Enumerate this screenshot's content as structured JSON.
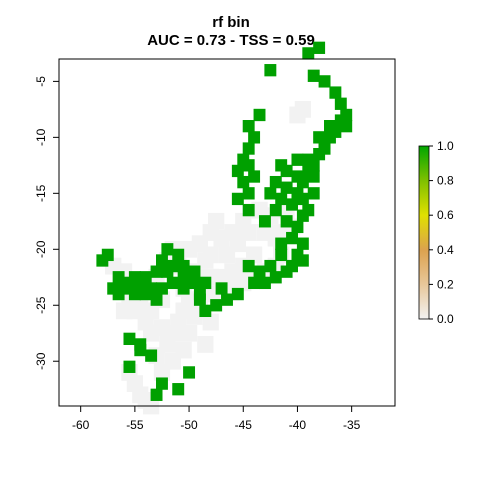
{
  "chart_data": {
    "type": "heatmap",
    "title": "rf bin",
    "subtitle": "AUC = 0.73 - TSS = 0.59",
    "xlabel": "",
    "ylabel": "",
    "xlim": [
      -62,
      -31
    ],
    "ylim": [
      -34,
      -3
    ],
    "x_ticks": [
      -60,
      -55,
      -50,
      -45,
      -40,
      -35
    ],
    "y_ticks": [
      -5,
      -10,
      -15,
      -20,
      -25,
      -30
    ],
    "grid": false,
    "legend_position": "right",
    "colorbar": {
      "range": [
        0.0,
        1.0
      ],
      "ticks": [
        "0.0",
        "0.2",
        "0.4",
        "0.6",
        "0.8",
        "1.0"
      ],
      "colors": [
        "#f2f2f2",
        "#e8c79a",
        "#dca24e",
        "#e0e000",
        "#7fc000",
        "#00a600"
      ]
    },
    "classes": [
      {
        "value": 0,
        "color": "#f2f2f2"
      },
      {
        "value": 1,
        "color": "#00a000"
      }
    ],
    "absence_cells": [
      [
        -55.5,
        -31.0
      ],
      [
        -55.0,
        -32.0
      ],
      [
        -54.5,
        -33.0
      ],
      [
        -54.0,
        -33.5
      ],
      [
        -53.5,
        -34.0
      ],
      [
        -52.5,
        -31.0
      ],
      [
        -51.5,
        -30.0
      ],
      [
        -50.5,
        -29.0
      ],
      [
        -50.0,
        -27.5
      ],
      [
        -49.5,
        -26.0
      ],
      [
        -48.0,
        -26.5
      ],
      [
        -48.5,
        -28.5
      ],
      [
        -53.0,
        -29.5
      ],
      [
        -52.0,
        -28.5
      ],
      [
        -51.5,
        -27.5
      ],
      [
        -51.0,
        -26.5
      ],
      [
        -50.5,
        -25.5
      ],
      [
        -49.0,
        -25.0
      ],
      [
        -50.0,
        -24.5
      ],
      [
        -54.0,
        -26.5
      ],
      [
        -53.5,
        -27.5
      ],
      [
        -52.5,
        -27.0
      ],
      [
        -53.5,
        -25.5
      ],
      [
        -52.5,
        -24.5
      ],
      [
        -50.5,
        -23.5
      ],
      [
        -48.5,
        -24.0
      ],
      [
        -47.0,
        -24.0
      ],
      [
        -46.0,
        -23.5
      ],
      [
        -45.0,
        -23.0
      ],
      [
        -44.0,
        -22.5
      ],
      [
        -43.0,
        -22.0
      ],
      [
        -42.0,
        -21.5
      ],
      [
        -41.5,
        -20.5
      ],
      [
        -42.0,
        -19.0
      ],
      [
        -43.0,
        -18.5
      ],
      [
        -42.5,
        -17.0
      ],
      [
        -43.5,
        -16.5
      ],
      [
        -44.0,
        -20.5
      ],
      [
        -45.0,
        -21.5
      ],
      [
        -46.0,
        -22.0
      ],
      [
        -47.0,
        -22.5
      ],
      [
        -48.0,
        -22.5
      ],
      [
        -49.0,
        -22.5
      ],
      [
        -50.0,
        -22.0
      ],
      [
        -51.0,
        -21.5
      ],
      [
        -52.0,
        -21.0
      ],
      [
        -50.0,
        -20.0
      ],
      [
        -51.5,
        -20.0
      ],
      [
        -49.0,
        -19.5
      ],
      [
        -48.0,
        -20.5
      ],
      [
        -46.5,
        -20.5
      ],
      [
        -45.5,
        -19.5
      ],
      [
        -44.5,
        -18.5
      ],
      [
        -45.0,
        -17.5
      ],
      [
        -46.0,
        -18.5
      ],
      [
        -47.0,
        -19.0
      ],
      [
        -48.5,
        -21.0
      ],
      [
        -53.5,
        -23.0
      ],
      [
        -54.5,
        -24.0
      ],
      [
        -55.5,
        -24.5
      ],
      [
        -56.0,
        -25.5
      ],
      [
        -55.0,
        -25.5
      ],
      [
        -53.0,
        -22.5
      ],
      [
        -57.0,
        -21.5
      ],
      [
        -56.0,
        -22.0
      ],
      [
        -41.0,
        -16.5
      ],
      [
        -41.5,
        -18.5
      ],
      [
        -40.5,
        -18.0
      ],
      [
        -47.5,
        -17.5
      ],
      [
        -48.0,
        -18.5
      ],
      [
        -40.0,
        -8.0
      ],
      [
        -39.5,
        -7.5
      ]
    ],
    "presence_cells": [
      [
        -36.0,
        -7.0
      ],
      [
        -35.5,
        -8.0
      ],
      [
        -36.0,
        -8.5
      ],
      [
        -36.5,
        -9.5
      ],
      [
        -37.0,
        -10.0
      ],
      [
        -35.5,
        -9.0
      ],
      [
        -36.5,
        -6.0
      ],
      [
        -37.5,
        -10.5
      ],
      [
        -38.0,
        -11.5
      ],
      [
        -38.5,
        -12.5
      ],
      [
        -39.0,
        -13.0
      ],
      [
        -39.5,
        -14.0
      ],
      [
        -38.5,
        -13.5
      ],
      [
        -37.5,
        -11.0
      ],
      [
        -40.0,
        -13.5
      ],
      [
        -39.0,
        -12.0
      ],
      [
        -40.0,
        -15.0
      ],
      [
        -40.5,
        -16.0
      ],
      [
        -39.5,
        -17.0
      ],
      [
        -40.0,
        -18.0
      ],
      [
        -39.5,
        -19.5
      ],
      [
        -40.0,
        -20.5
      ],
      [
        -40.5,
        -21.5
      ],
      [
        -41.0,
        -22.0
      ],
      [
        -42.0,
        -22.5
      ],
      [
        -43.0,
        -23.0
      ],
      [
        -44.0,
        -23.0
      ],
      [
        -41.0,
        -14.5
      ],
      [
        -41.5,
        -15.5
      ],
      [
        -42.0,
        -16.5
      ],
      [
        -41.0,
        -17.5
      ],
      [
        -40.5,
        -19.0
      ],
      [
        -41.0,
        -13.0
      ],
      [
        -42.0,
        -14.0
      ],
      [
        -41.5,
        -12.5
      ],
      [
        -39.5,
        -15.5
      ],
      [
        -38.5,
        -15.0
      ],
      [
        -39.0,
        -16.5
      ],
      [
        -41.5,
        -19.5
      ],
      [
        -39.5,
        -21.0
      ],
      [
        -38.0,
        -10.0
      ],
      [
        -37.0,
        -9.0
      ],
      [
        -41.5,
        -20.5
      ],
      [
        -42.5,
        -21.5
      ],
      [
        -43.5,
        -22.0
      ],
      [
        -44.5,
        -21.5
      ],
      [
        -40.0,
        -12.0
      ],
      [
        -45.5,
        -24.0
      ],
      [
        -46.5,
        -24.5
      ],
      [
        -47.5,
        -25.0
      ],
      [
        -48.5,
        -25.5
      ],
      [
        -49.0,
        -24.5
      ],
      [
        -47.0,
        -23.5
      ],
      [
        -52.5,
        -21.0
      ],
      [
        -51.5,
        -21.5
      ],
      [
        -50.5,
        -21.5
      ],
      [
        -51.0,
        -20.5
      ],
      [
        -52.0,
        -20.0
      ],
      [
        -53.0,
        -22.0
      ],
      [
        -52.0,
        -22.0
      ],
      [
        -50.5,
        -22.5
      ],
      [
        -49.5,
        -22.0
      ],
      [
        -54.0,
        -22.5
      ],
      [
        -55.0,
        -22.5
      ],
      [
        -56.0,
        -23.0
      ],
      [
        -56.5,
        -22.5
      ],
      [
        -55.5,
        -23.5
      ],
      [
        -54.5,
        -23.0
      ],
      [
        -53.5,
        -23.5
      ],
      [
        -52.5,
        -23.5
      ],
      [
        -51.5,
        -23.0
      ],
      [
        -50.5,
        -23.5
      ],
      [
        -49.5,
        -23.0
      ],
      [
        -48.5,
        -23.0
      ],
      [
        -56.5,
        -24.0
      ],
      [
        -57.0,
        -23.5
      ],
      [
        -55.0,
        -24.0
      ],
      [
        -54.0,
        -24.0
      ],
      [
        -53.0,
        -24.5
      ],
      [
        -49.0,
        -24.0
      ],
      [
        -44.5,
        -9.0
      ],
      [
        -44.0,
        -10.0
      ],
      [
        -44.5,
        -11.0
      ],
      [
        -45.0,
        -12.0
      ],
      [
        -44.5,
        -12.5
      ],
      [
        -45.5,
        -13.0
      ],
      [
        -44.0,
        -13.5
      ],
      [
        -44.5,
        -15.0
      ],
      [
        -45.0,
        -14.0
      ],
      [
        -45.5,
        -15.5
      ],
      [
        -44.5,
        -16.5
      ],
      [
        -43.5,
        -8.0
      ],
      [
        -42.5,
        -15.0
      ],
      [
        -43.0,
        -17.5
      ],
      [
        -42.5,
        -4.0
      ],
      [
        -38.5,
        -4.5
      ],
      [
        -37.5,
        -5.0
      ],
      [
        -39.0,
        -2.5
      ],
      [
        -38.0,
        -2.0
      ],
      [
        -57.5,
        -20.5
      ],
      [
        -58.0,
        -21.0
      ],
      [
        -54.5,
        -28.5
      ],
      [
        -55.5,
        -28.0
      ],
      [
        -53.5,
        -29.5
      ],
      [
        -54.5,
        -29.0
      ],
      [
        -55.5,
        -30.5
      ],
      [
        -53.0,
        -33.0
      ],
      [
        -52.5,
        -32.0
      ],
      [
        -51.0,
        -32.5
      ],
      [
        -50.0,
        -31.0
      ]
    ]
  }
}
